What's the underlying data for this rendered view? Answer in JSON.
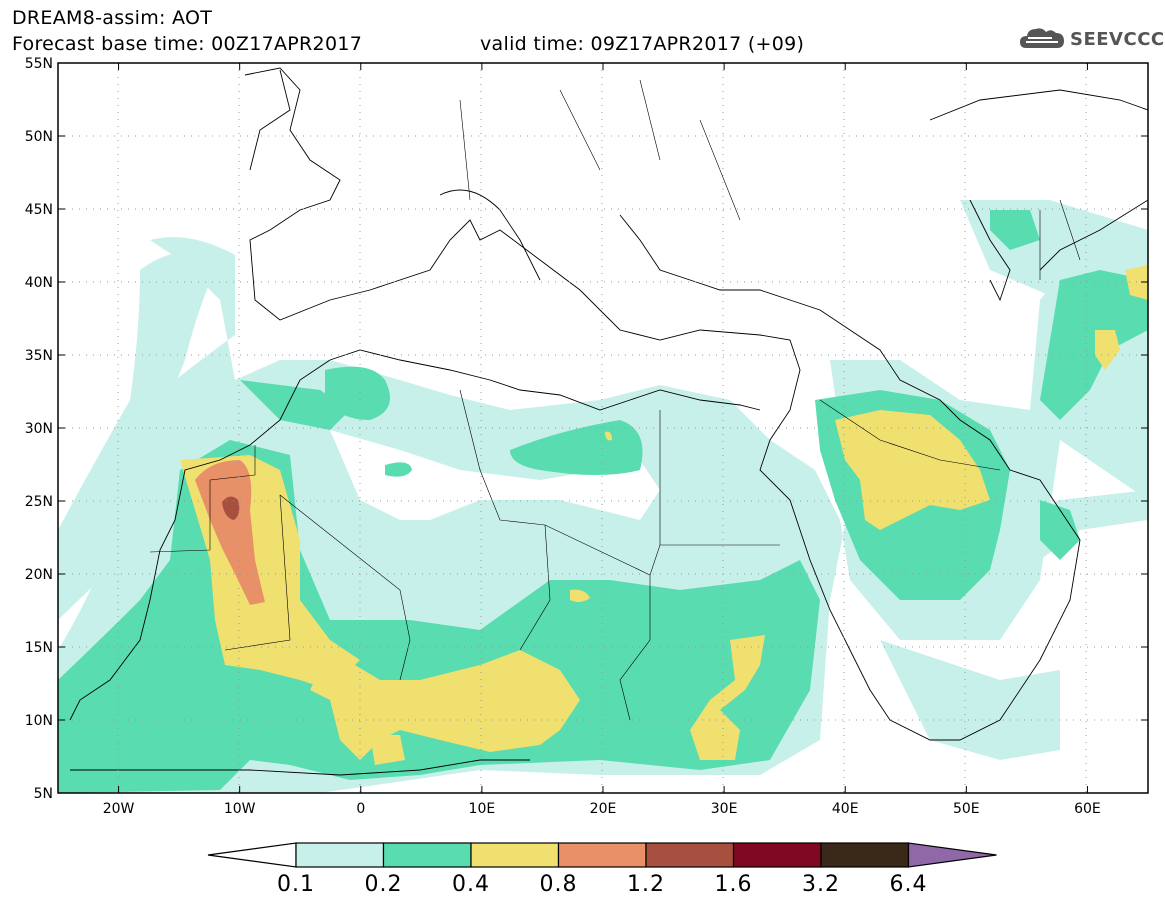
{
  "header": {
    "title": "DREAM8-assim: AOT",
    "base_time": "Forecast base time: 00Z17APR2017",
    "valid_time": "valid time: 09Z17APR2017 (+09)"
  },
  "logo": {
    "text": "SEEVCCC",
    "icon": "cloud-icon"
  },
  "map": {
    "lon_range": [
      -25,
      65
    ],
    "lat_range": [
      5,
      55
    ],
    "lat_labels": [
      "55N",
      "50N",
      "45N",
      "40N",
      "35N",
      "30N",
      "25N",
      "20N",
      "15N",
      "10N",
      "5N"
    ],
    "lon_labels": [
      "20W",
      "10W",
      "0",
      "10E",
      "20E",
      "30E",
      "40E",
      "50E",
      "60E"
    ]
  },
  "colorbar": {
    "levels": [
      "0.1",
      "0.2",
      "0.4",
      "0.8",
      "1.2",
      "1.6",
      "3.2",
      "6.4"
    ],
    "colors": [
      "#c8f0ea",
      "#58dcb0",
      "#f0e070",
      "#e89068",
      "#a85040",
      "#800820",
      "#3a2818",
      "#9068a8"
    ]
  }
}
